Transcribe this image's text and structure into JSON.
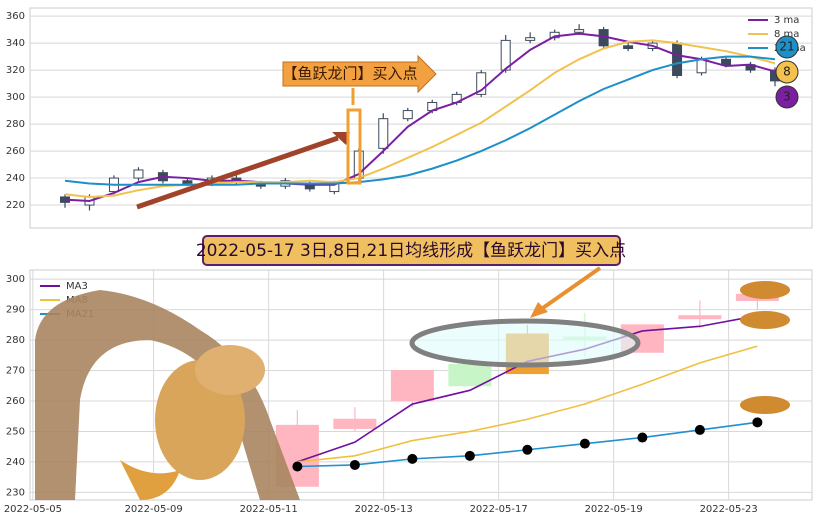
{
  "chart_data": [
    {
      "type": "candlestick",
      "open": [
        226,
        220,
        230,
        240,
        244,
        238,
        236,
        240,
        236,
        234,
        236,
        230,
        240,
        262,
        284,
        290,
        296,
        302,
        320,
        342,
        344,
        348,
        350,
        338,
        336,
        340,
        318,
        328,
        324,
        320
      ],
      "high": [
        228,
        228,
        242,
        248,
        246,
        240,
        242,
        242,
        238,
        240,
        238,
        238,
        262,
        288,
        292,
        298,
        304,
        320,
        346,
        348,
        350,
        354,
        352,
        340,
        342,
        342,
        330,
        330,
        326,
        322
      ],
      "low": [
        218,
        216,
        228,
        238,
        236,
        234,
        234,
        235,
        232,
        232,
        230,
        228,
        238,
        258,
        282,
        288,
        294,
        300,
        318,
        340,
        342,
        346,
        336,
        334,
        334,
        314,
        316,
        322,
        318,
        308
      ],
      "close": [
        222,
        226,
        240,
        246,
        238,
        236,
        240,
        237,
        234,
        238,
        232,
        236,
        260,
        284,
        290,
        296,
        302,
        318,
        342,
        344,
        348,
        350,
        338,
        336,
        340,
        316,
        328,
        324,
        320,
        312
      ],
      "up_color": "#ffffff",
      "down_color": "#3d4a5c",
      "series": [
        {
          "name": "3 ma",
          "color": "#7a1fa2",
          "values": [
            224,
            223,
            229,
            237,
            241,
            240,
            238,
            238,
            237,
            236,
            235,
            235,
            243,
            260,
            278,
            290,
            296,
            305,
            321,
            335,
            345,
            347,
            345,
            341,
            338,
            331,
            328,
            323,
            324,
            319
          ]
        },
        {
          "name": "8 ma",
          "color": "#f2c14e",
          "values": [
            228,
            226,
            227,
            231,
            234,
            235,
            236,
            237,
            237,
            237,
            238,
            237,
            240,
            247,
            255,
            263,
            272,
            281,
            293,
            305,
            318,
            328,
            336,
            341,
            342,
            340,
            337,
            334,
            330,
            325
          ]
        },
        {
          "name": "21 ma",
          "color": "#1f8fc8",
          "values": [
            238,
            236,
            235,
            235,
            235,
            235,
            235,
            235,
            236,
            236,
            236,
            236,
            237,
            239,
            242,
            247,
            253,
            260,
            268,
            277,
            287,
            297,
            306,
            313,
            320,
            325,
            328,
            330,
            330,
            328
          ]
        }
      ],
      "ylim": [
        203,
        366
      ],
      "yticks": [
        220,
        240,
        260,
        280,
        300,
        320,
        340,
        360
      ],
      "grid": true,
      "annotation": "【鱼跃龙门】买入点",
      "badges": [
        {
          "label": "21",
          "color": "#1f8fc8"
        },
        {
          "label": "8",
          "color": "#f2c14e"
        },
        {
          "label": "3",
          "color": "#7a1fa2"
        }
      ]
    },
    {
      "type": "candlestick",
      "title": "2022-05-17 3日,8日,21日均线形成【鱼跃龙门】买入点",
      "x": [
        0,
        1,
        2,
        3,
        4,
        5,
        6,
        7,
        8
      ],
      "open": [
        252,
        254,
        270,
        265,
        269,
        280,
        285,
        288,
        295
      ],
      "high": [
        257,
        258,
        270,
        274,
        285,
        289,
        285,
        293,
        295
      ],
      "low": [
        232,
        250,
        258,
        265,
        269,
        274,
        276,
        284,
        290
      ],
      "close": [
        232,
        251,
        260,
        272,
        282,
        281,
        276,
        287,
        293
      ],
      "colors": [
        "#ffb6c1",
        "#ffb6c1",
        "#ffb6c1",
        "#c8f5c8",
        "#f0a030",
        "#c8f5c8",
        "#ffb6c1",
        "#ffb6c1",
        "#ffb6c1"
      ],
      "series": [
        {
          "name": "MA3",
          "color": "#7010a0",
          "values": [
            240,
            246.5,
            259,
            263.5,
            273,
            277,
            283,
            284.5,
            288
          ]
        },
        {
          "name": "MA8",
          "color": "#f0c040",
          "values": [
            240,
            242,
            247,
            250,
            254,
            259,
            265.5,
            272.5,
            278
          ]
        },
        {
          "name": "MA21",
          "color": "#2090d0",
          "values": [
            238.5,
            239,
            241,
            242,
            244,
            246,
            248,
            250.5,
            253
          ]
        }
      ],
      "xlim": [
        -4.65,
        8.95
      ],
      "xticks": [
        {
          "value": -4.6,
          "label": "2022-05-05"
        },
        {
          "value": -2.5,
          "label": "2022-05-09"
        },
        {
          "value": -0.5,
          "label": "2022-05-11"
        },
        {
          "value": 1.5,
          "label": "2022-05-13"
        },
        {
          "value": 3.5,
          "label": "2022-05-17"
        },
        {
          "value": 5.5,
          "label": "2022-05-19"
        },
        {
          "value": 7.5,
          "label": "2022-05-23"
        }
      ],
      "ylim": [
        227.5,
        303
      ],
      "yticks": [
        230,
        240,
        250,
        260,
        270,
        280,
        290,
        300
      ],
      "grid": true
    }
  ]
}
